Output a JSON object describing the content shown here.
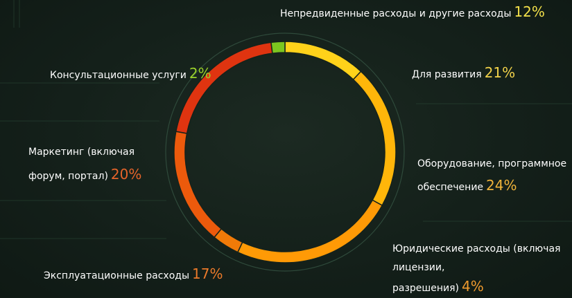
{
  "chart_data": {
    "type": "pie",
    "variant": "donut",
    "slices": [
      {
        "label": "Непредвиденные расходы и другие расходы",
        "value": 12,
        "display": "12%",
        "color": "#ffd21a"
      },
      {
        "label": "Для развития",
        "value": 21,
        "display": "21%",
        "color": "#ffb60a"
      },
      {
        "label": "Оборудование, программное обеспечение",
        "value": 24,
        "display": "24%",
        "color": "#ff9a06"
      },
      {
        "label": "Юридические расходы (включая лицензии, разрешения)",
        "value": 4,
        "display": "4%",
        "color": "#f07a08"
      },
      {
        "label": "Эксплуатационные расходы",
        "value": 17,
        "display": "17%",
        "color": "#ec5a0c"
      },
      {
        "label": "Маркетинг (включая форум, портал)",
        "value": 20,
        "display": "20%",
        "color": "#df3410"
      },
      {
        "label": "Консультационные услуги",
        "value": 2,
        "display": "2%",
        "color": "#7cc620"
      }
    ]
  },
  "labels": {
    "contingency": {
      "line1": "Непредвиденные расходы и другие расходы",
      "pct": "12%",
      "pct_color": "#f2e04a"
    },
    "development": {
      "line1": "Для развития",
      "pct": "21%",
      "pct_color": "#f2d24a"
    },
    "equipment": {
      "line1": "Оборудование, программное",
      "line2": "обеспечение",
      "pct": "24%",
      "pct_color": "#f0b43a"
    },
    "legal": {
      "line1": "Юридические расходы (включая",
      "line2": "лицензии,",
      "line3": "разрешения)",
      "pct": "4%",
      "pct_color": "#ef9a2e"
    },
    "operational": {
      "line1": "Эксплуатационные расходы",
      "pct": "17%",
      "pct_color": "#ec7a2a"
    },
    "marketing": {
      "line1": "Маркетинг (включая",
      "line2": "форум, портал)",
      "pct": "20%",
      "pct_color": "#e6642a"
    },
    "consulting": {
      "line1": "Консультационные услуги",
      "pct": "2%",
      "pct_color": "#9ad12a"
    }
  }
}
